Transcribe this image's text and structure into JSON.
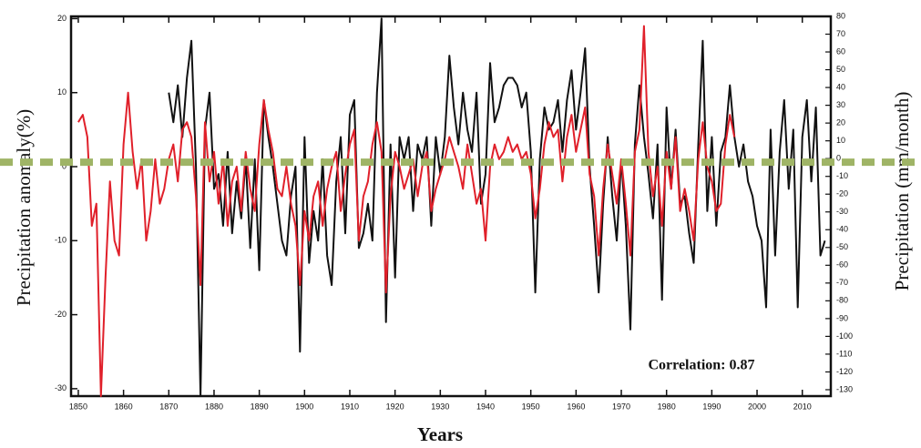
{
  "chart_data": {
    "type": "line",
    "x_label": "Years",
    "y_label": "Precipitation anomaly(%)",
    "y2_label": "Precipitation (mm/month)",
    "annotation": "Correlation: 0.87",
    "x": [
      1850,
      1851,
      1852,
      1853,
      1854,
      1855,
      1856,
      1857,
      1858,
      1859,
      1860,
      1861,
      1862,
      1863,
      1864,
      1865,
      1866,
      1867,
      1868,
      1869,
      1870,
      1871,
      1872,
      1873,
      1874,
      1875,
      1876,
      1877,
      1878,
      1879,
      1880,
      1881,
      1882,
      1883,
      1884,
      1885,
      1886,
      1887,
      1888,
      1889,
      1890,
      1891,
      1892,
      1893,
      1894,
      1895,
      1896,
      1897,
      1898,
      1899,
      1900,
      1901,
      1902,
      1903,
      1904,
      1905,
      1906,
      1907,
      1908,
      1909,
      1910,
      1911,
      1912,
      1913,
      1914,
      1915,
      1916,
      1917,
      1918,
      1919,
      1920,
      1921,
      1922,
      1923,
      1924,
      1925,
      1926,
      1927,
      1928,
      1929,
      1930,
      1931,
      1932,
      1933,
      1934,
      1935,
      1936,
      1937,
      1938,
      1939,
      1940,
      1941,
      1942,
      1943,
      1944,
      1945,
      1946,
      1947,
      1948,
      1949,
      1950,
      1951,
      1952,
      1953,
      1954,
      1955,
      1956,
      1957,
      1958,
      1959,
      1960,
      1961,
      1962,
      1963,
      1964,
      1965,
      1966,
      1967,
      1968,
      1969,
      1970,
      1971,
      1972,
      1973,
      1974,
      1975,
      1976,
      1977,
      1978,
      1979,
      1980,
      1981,
      1982,
      1983,
      1984,
      1985,
      1986,
      1987,
      1988,
      1989,
      1990,
      1991,
      1992,
      1993,
      1994,
      1995,
      1996,
      1997,
      1998,
      1999,
      2000,
      2001,
      2002,
      2003,
      2004,
      2005,
      2006,
      2007,
      2008,
      2009,
      2010,
      2011,
      2012,
      2013,
      2014,
      2015
    ],
    "series": [
      {
        "color": "#111111",
        "values": [
          null,
          null,
          null,
          null,
          null,
          null,
          null,
          null,
          null,
          null,
          null,
          null,
          null,
          null,
          null,
          null,
          null,
          null,
          null,
          null,
          10,
          6,
          11,
          4,
          12,
          17,
          0,
          -31,
          5,
          10,
          -3,
          -1,
          -8,
          2,
          -9,
          -2,
          -7,
          1,
          -11,
          1,
          -14,
          9,
          4,
          0,
          -5,
          -10,
          -12,
          -4,
          0,
          -25,
          4,
          -13,
          -6,
          -10,
          1,
          -12,
          -16,
          -2,
          4,
          -9,
          7,
          9,
          -11,
          -9,
          -5,
          -10,
          10,
          20,
          -21,
          3,
          -15,
          4,
          1,
          4,
          -6,
          3,
          1,
          4,
          -8,
          4,
          -1,
          4,
          15,
          8,
          3,
          10,
          5,
          2,
          10,
          -5,
          -1,
          14,
          6,
          8,
          11,
          12,
          12,
          11,
          8,
          10,
          2,
          -17,
          1,
          8,
          5,
          6,
          9,
          2,
          9,
          13,
          5,
          10,
          16,
          0,
          -8,
          -17,
          -5,
          4,
          -4,
          -10,
          1,
          -8,
          -22,
          3,
          11,
          4,
          -1,
          -7,
          3,
          -18,
          8,
          -3,
          5,
          -5,
          -4,
          -9,
          -13,
          3,
          17,
          -6,
          4,
          -8,
          2,
          4,
          11,
          4,
          0,
          3,
          -2,
          -4,
          -8,
          -10,
          -19,
          5,
          -12,
          2,
          9,
          -3,
          5,
          -19,
          4,
          9,
          -2,
          8,
          -12,
          -10
        ]
      },
      {
        "color": "#e0202a",
        "values": [
          6,
          7,
          4,
          -8,
          -5,
          -31,
          -15,
          -2,
          -10,
          -12,
          3,
          10,
          2,
          -3,
          1,
          -10,
          -6,
          1,
          -5,
          -3,
          1,
          3,
          -2,
          5,
          6,
          4,
          -4,
          -16,
          6,
          -2,
          2,
          -5,
          1,
          -8,
          -2,
          0,
          -6,
          2,
          -3,
          -6,
          3,
          9,
          5,
          2,
          -3,
          -4,
          0,
          -5,
          -8,
          -16,
          -6,
          -10,
          -4,
          -2,
          -8,
          -3,
          0,
          2,
          -6,
          -1,
          3,
          5,
          -10,
          -4,
          -2,
          3,
          6,
          2,
          -17,
          -4,
          2,
          0,
          -3,
          -1,
          1,
          -4,
          0,
          2,
          -6,
          -3,
          -1,
          1,
          4,
          2,
          0,
          -3,
          3,
          -1,
          -5,
          -3,
          -10,
          0,
          3,
          1,
          2,
          4,
          2,
          3,
          1,
          2,
          -1,
          -7,
          -3,
          3,
          6,
          4,
          5,
          -2,
          4,
          7,
          2,
          5,
          8,
          -1,
          -4,
          -12,
          -3,
          3,
          -1,
          -5,
          1,
          -5,
          -12,
          2,
          5,
          19,
          2,
          -4,
          0,
          -8,
          2,
          -3,
          4,
          -6,
          -3,
          -6,
          -10,
          1,
          6,
          0,
          -2,
          -6,
          -5,
          3,
          7,
          4,
          null,
          null,
          null,
          null,
          null,
          null,
          null,
          null,
          null,
          null,
          null,
          null,
          null,
          null,
          null,
          null,
          null,
          null,
          null,
          null
        ]
      }
    ],
    "hline": {
      "value": 0.6,
      "color": "#9fb466"
    },
    "xlim": [
      1848.4,
      2016.3
    ],
    "xticks": [
      1850,
      1860,
      1870,
      1880,
      1890,
      1900,
      1910,
      1920,
      1930,
      1940,
      1950,
      1960,
      1970,
      1980,
      1990,
      2000,
      2010
    ],
    "ylim": [
      -31,
      20.3
    ],
    "yticks": [
      -30,
      -20,
      -10,
      0,
      10,
      20
    ],
    "y2lim": [
      -133.6,
      80
    ],
    "y2ticks": [
      80,
      70,
      60,
      50,
      40,
      30,
      20,
      10,
      0,
      -10,
      -20,
      -30,
      -40,
      -50,
      -60,
      -70,
      -80,
      -90,
      -100,
      -110,
      -120,
      -130
    ]
  }
}
